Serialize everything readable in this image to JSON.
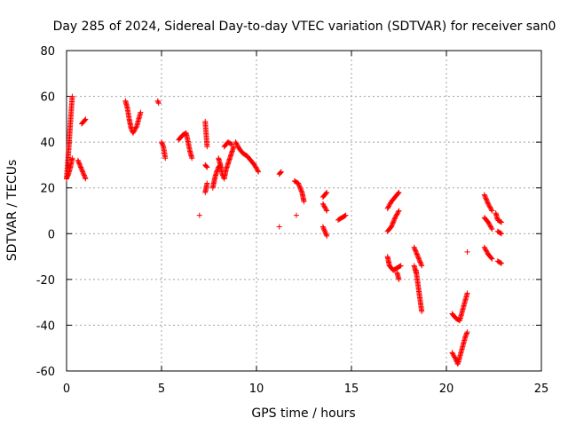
{
  "chart_data": {
    "type": "scatter",
    "title": "Day 285 of 2024, Sidereal Day-to-day VTEC variation (SDTVAR) for receiver san0",
    "xlabel": "GPS time / hours",
    "ylabel": "SDTVAR / TECUs",
    "xlim": [
      0,
      25
    ],
    "ylim": [
      -60,
      80
    ],
    "xticks": [
      "0",
      "5",
      "10",
      "15",
      "20",
      "25"
    ],
    "yticks": [
      "-60",
      "-40",
      "-20",
      "0",
      "20",
      "40",
      "60",
      "80"
    ],
    "grid": true,
    "marker": "plus",
    "color": "#ff0000",
    "series": [
      {
        "name": "seg01",
        "x": [
          0.0,
          0.1,
          0.2,
          0.3
        ],
        "y": [
          24,
          35,
          48,
          60
        ]
      },
      {
        "name": "seg02",
        "x": [
          0.0,
          0.1,
          0.2,
          0.3
        ],
        "y": [
          24,
          26,
          29,
          33
        ]
      },
      {
        "name": "seg03",
        "x": [
          0.6,
          0.7,
          0.8,
          0.9,
          1.0
        ],
        "y": [
          32,
          30,
          28,
          26,
          24
        ]
      },
      {
        "name": "seg04",
        "x": [
          0.8,
          0.9,
          1.0
        ],
        "y": [
          48,
          49,
          50
        ]
      },
      {
        "name": "seg05",
        "x": [
          3.1,
          3.2,
          3.3,
          3.4,
          3.5,
          3.7,
          3.9
        ],
        "y": [
          58,
          55,
          50,
          46,
          44,
          47,
          53
        ]
      },
      {
        "name": "seg06",
        "x": [
          4.8,
          4.85
        ],
        "y": [
          58,
          57
        ]
      },
      {
        "name": "seg07",
        "x": [
          5.0,
          5.1,
          5.2
        ],
        "y": [
          40,
          38,
          33
        ]
      },
      {
        "name": "seg08",
        "x": [
          5.9,
          6.1,
          6.3,
          6.5,
          6.6
        ],
        "y": [
          41,
          43,
          44,
          36,
          33
        ]
      },
      {
        "name": "seg09",
        "x": [
          7.0
        ],
        "y": [
          8
        ]
      },
      {
        "name": "seg10",
        "x": [
          7.3,
          7.4
        ],
        "y": [
          49,
          38
        ]
      },
      {
        "name": "seg11",
        "x": [
          7.3,
          7.4
        ],
        "y": [
          18,
          22
        ]
      },
      {
        "name": "seg12",
        "x": [
          7.3,
          7.4
        ],
        "y": [
          30,
          29
        ]
      },
      {
        "name": "seg13",
        "x": [
          7.7,
          7.8,
          7.9,
          8.0,
          8.1
        ],
        "y": [
          20,
          24,
          27,
          29,
          30
        ]
      },
      {
        "name": "seg14",
        "x": [
          8.0,
          8.1,
          8.2,
          8.3,
          8.4,
          8.6,
          8.8
        ],
        "y": [
          33,
          30,
          26,
          24,
          28,
          33,
          38
        ]
      },
      {
        "name": "seg15",
        "x": [
          8.3,
          8.5,
          8.7
        ],
        "y": [
          38,
          40,
          39
        ]
      },
      {
        "name": "seg16",
        "x": [
          8.9,
          9.1,
          9.3,
          9.5,
          9.7,
          9.9,
          10.1
        ],
        "y": [
          40,
          37,
          35,
          34,
          32,
          30,
          27
        ]
      },
      {
        "name": "seg17",
        "x": [
          11.2
        ],
        "y": [
          3
        ]
      },
      {
        "name": "seg18",
        "x": [
          11.2,
          11.3
        ],
        "y": [
          26,
          27
        ]
      },
      {
        "name": "seg19",
        "x": [
          12.0,
          12.2,
          12.4,
          12.5
        ],
        "y": [
          23,
          22,
          18,
          14
        ]
      },
      {
        "name": "seg20",
        "x": [
          12.1
        ],
        "y": [
          8
        ]
      },
      {
        "name": "seg21",
        "x": [
          13.5,
          13.7
        ],
        "y": [
          16,
          18
        ]
      },
      {
        "name": "seg22",
        "x": [
          13.5,
          13.7
        ],
        "y": [
          13,
          10
        ]
      },
      {
        "name": "seg23",
        "x": [
          13.5,
          13.7
        ],
        "y": [
          3,
          -1
        ]
      },
      {
        "name": "seg24",
        "x": [
          14.3,
          14.5,
          14.7
        ],
        "y": [
          6,
          7,
          8
        ]
      },
      {
        "name": "seg25",
        "x": [
          16.9,
          17.1,
          17.3,
          17.5
        ],
        "y": [
          11,
          14,
          16,
          18
        ]
      },
      {
        "name": "seg26",
        "x": [
          16.9,
          17.1,
          17.3,
          17.5
        ],
        "y": [
          1,
          3,
          7,
          10
        ]
      },
      {
        "name": "seg27",
        "x": [
          16.9,
          17.0,
          17.2,
          17.4,
          17.6
        ],
        "y": [
          -10,
          -14,
          -16,
          -15,
          -14
        ]
      },
      {
        "name": "seg28",
        "x": [
          17.4,
          17.5
        ],
        "y": [
          -17,
          -20
        ]
      },
      {
        "name": "seg29",
        "x": [
          18.3,
          18.5,
          18.7
        ],
        "y": [
          -6,
          -10,
          -14
        ]
      },
      {
        "name": "seg30",
        "x": [
          18.4,
          18.5,
          18.6,
          18.7
        ],
        "y": [
          -16,
          -22,
          -28,
          -34
        ]
      },
      {
        "name": "seg31",
        "x": [
          18.3,
          18.4
        ],
        "y": [
          -14,
          -17
        ]
      },
      {
        "name": "seg32",
        "x": [
          20.3,
          20.5,
          20.7,
          20.9,
          21.1
        ],
        "y": [
          -35,
          -37,
          -38,
          -32,
          -26
        ]
      },
      {
        "name": "seg33",
        "x": [
          20.3,
          20.5,
          20.6,
          20.8,
          21.0,
          21.1
        ],
        "y": [
          -52,
          -55,
          -57,
          -51,
          -45,
          -43
        ]
      },
      {
        "name": "seg34",
        "x": [
          21.1
        ],
        "y": [
          -8
        ]
      },
      {
        "name": "seg35",
        "x": [
          22.0,
          22.2,
          22.4
        ],
        "y": [
          17,
          13,
          10
        ]
      },
      {
        "name": "seg36",
        "x": [
          22.0,
          22.2,
          22.4
        ],
        "y": [
          7,
          5,
          2
        ]
      },
      {
        "name": "seg37",
        "x": [
          22.0,
          22.2,
          22.4
        ],
        "y": [
          -6,
          -9,
          -11
        ]
      },
      {
        "name": "seg38",
        "x": [
          22.6,
          22.7,
          22.9
        ],
        "y": [
          9,
          6,
          5
        ]
      },
      {
        "name": "seg39",
        "x": [
          22.7,
          22.9
        ],
        "y": [
          1,
          0
        ]
      },
      {
        "name": "seg40",
        "x": [
          22.7,
          22.9
        ],
        "y": [
          -12,
          -13
        ]
      }
    ]
  }
}
